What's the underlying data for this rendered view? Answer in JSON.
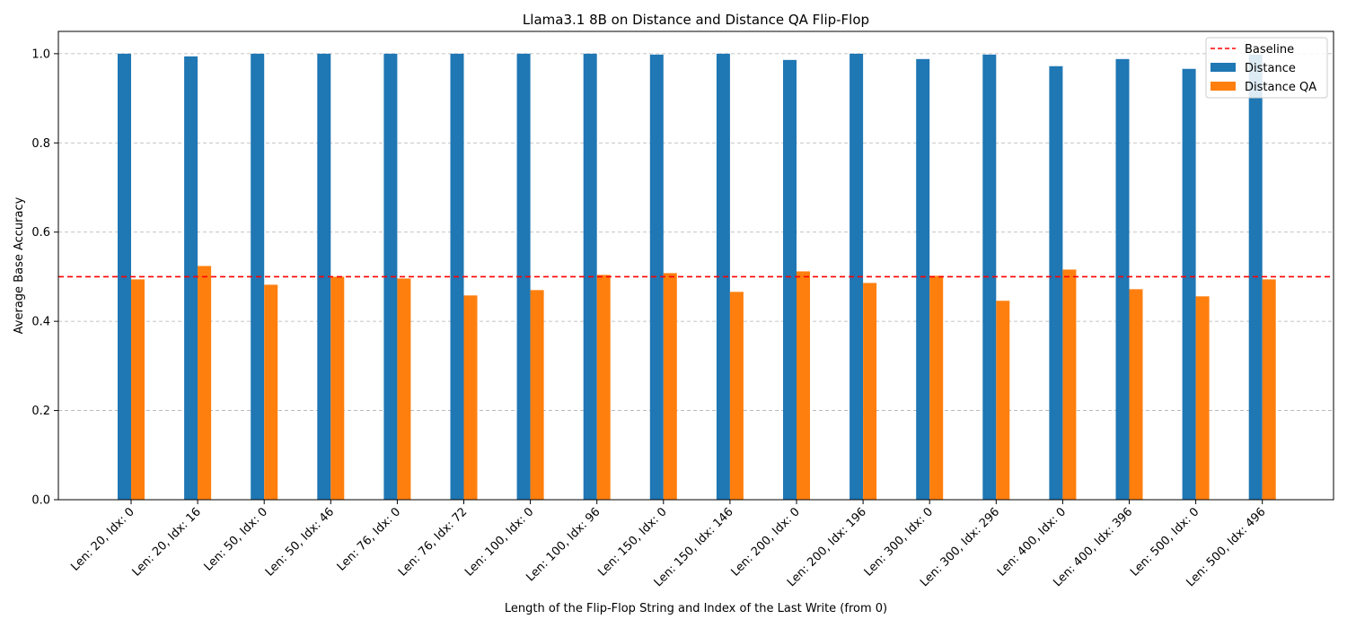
{
  "chart_data": {
    "type": "bar",
    "title": "Llama3.1 8B on Distance and Distance QA Flip-Flop",
    "xlabel": "Length of the Flip-Flop String and Index of the Last Write (from 0)",
    "ylabel": "Average Base Accuracy",
    "ylim": [
      0,
      1.05
    ],
    "yticks": [
      "0.0",
      "0.2",
      "0.4",
      "0.6",
      "0.8",
      "1.0"
    ],
    "grid": "horizontal-dashed",
    "legend_position": "top-right",
    "categories": [
      "Len: 20, Idx: 0",
      "Len: 20, Idx: 16",
      "Len: 50, Idx: 0",
      "Len: 50, Idx: 46",
      "Len: 76, Idx: 0",
      "Len: 76, Idx: 72",
      "Len: 100, Idx: 0",
      "Len: 100, Idx: 96",
      "Len: 150, Idx: 0",
      "Len: 150, Idx: 146",
      "Len: 200, Idx: 0",
      "Len: 200, Idx: 196",
      "Len: 300, Idx: 0",
      "Len: 300, Idx: 296",
      "Len: 400, Idx: 0",
      "Len: 400, Idx: 396",
      "Len: 500, Idx: 0",
      "Len: 500, Idx: 496"
    ],
    "series": [
      {
        "name": "Distance",
        "color": "#1f77b4",
        "values": [
          1.0,
          0.994,
          1.0,
          1.0,
          1.0,
          1.0,
          1.0,
          1.0,
          0.998,
          1.0,
          0.986,
          1.0,
          0.988,
          0.998,
          0.972,
          0.988,
          0.966,
          0.998
        ]
      },
      {
        "name": "Distance QA",
        "color": "#ff7f0e",
        "values": [
          0.494,
          0.524,
          0.482,
          0.5,
          0.496,
          0.458,
          0.47,
          0.504,
          0.508,
          0.466,
          0.512,
          0.486,
          0.502,
          0.446,
          0.516,
          0.472,
          0.456,
          0.494
        ]
      }
    ],
    "baseline": {
      "name": "Baseline",
      "value": 0.5,
      "color": "#ff0000"
    }
  }
}
